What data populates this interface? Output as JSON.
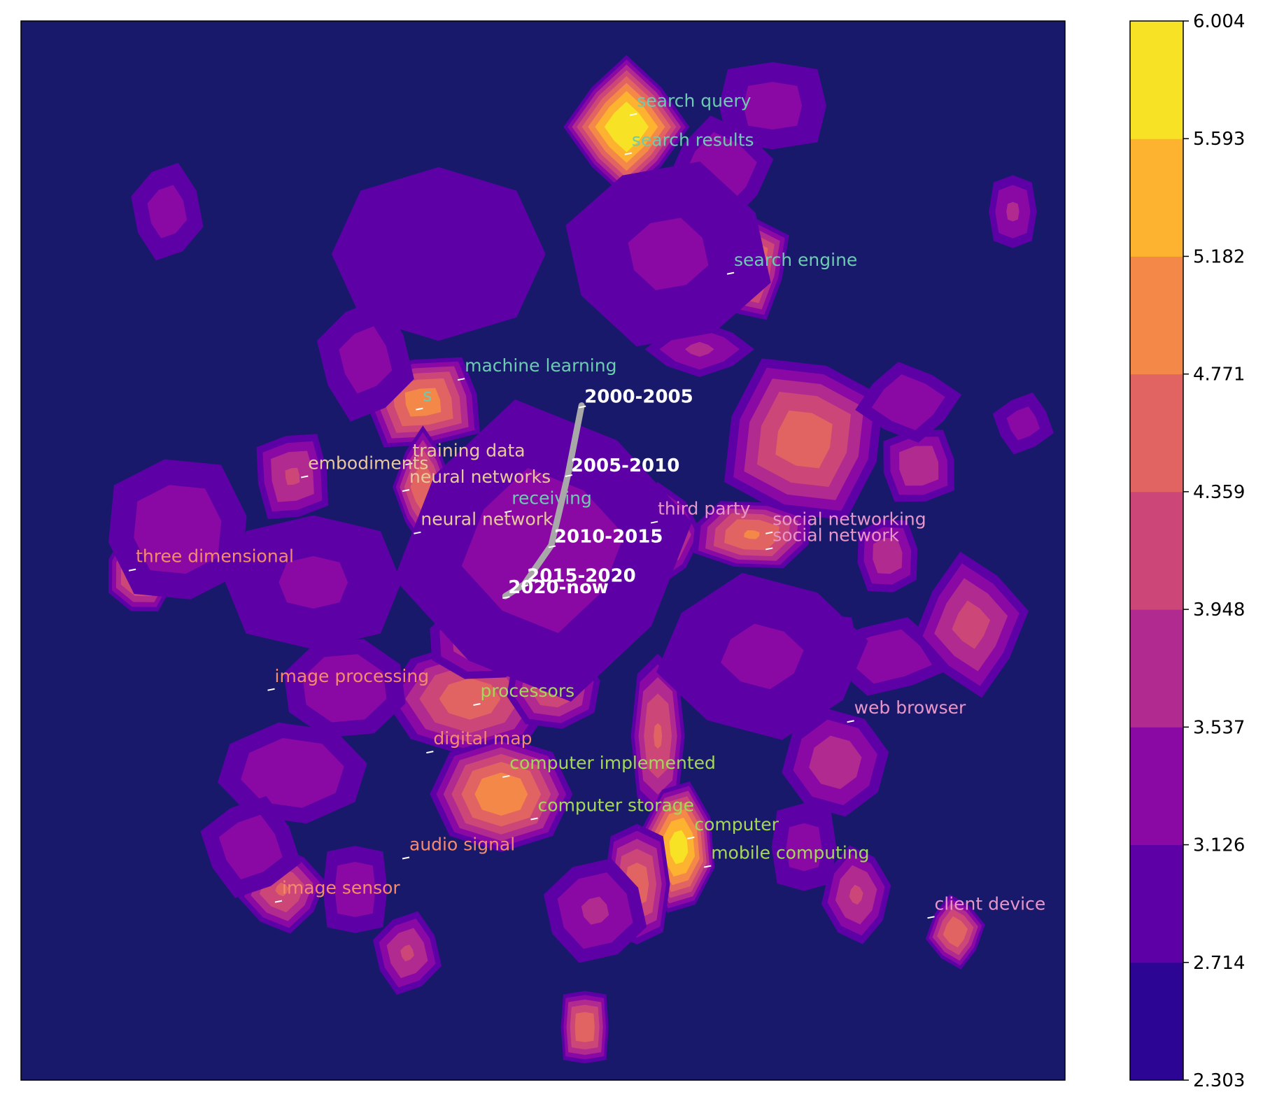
{
  "chart_data": {
    "type": "heatmap",
    "title": "",
    "xlabel": "",
    "ylabel": "",
    "colorbar": {
      "ticks": [
        "2.303",
        "2.714",
        "3.126",
        "3.537",
        "3.948",
        "4.359",
        "4.771",
        "5.182",
        "5.593",
        "6.004"
      ],
      "range": [
        2.303,
        6.004
      ],
      "colors": [
        "#2d0594",
        "#5d01a6",
        "#8a09a5",
        "#b02a90",
        "#cc4778",
        "#e16462",
        "#f48849",
        "#fdb32f",
        "#f7e225"
      ]
    },
    "background_color": "#19196b",
    "peaks": [
      {
        "x": 0.58,
        "y": 0.9,
        "level": 6.0,
        "rx": 0.04,
        "ry": 0.045
      },
      {
        "x": 0.69,
        "y": 0.77,
        "level": 5.1,
        "rx": 0.035,
        "ry": 0.04
      },
      {
        "x": 0.385,
        "y": 0.64,
        "level": 5.0,
        "rx": 0.045,
        "ry": 0.035
      },
      {
        "x": 0.385,
        "y": 0.56,
        "level": 4.7,
        "rx": 0.02,
        "ry": 0.04
      },
      {
        "x": 0.47,
        "y": 0.55,
        "level": 3.9,
        "rx": 0.035,
        "ry": 0.03
      },
      {
        "x": 0.26,
        "y": 0.57,
        "level": 4.0,
        "rx": 0.03,
        "ry": 0.035
      },
      {
        "x": 0.65,
        "y": 0.69,
        "level": 3.6,
        "rx": 0.04,
        "ry": 0.02
      },
      {
        "x": 0.75,
        "y": 0.605,
        "level": 4.6,
        "rx": 0.06,
        "ry": 0.06
      },
      {
        "x": 0.86,
        "y": 0.58,
        "level": 3.9,
        "rx": 0.03,
        "ry": 0.03
      },
      {
        "x": 0.61,
        "y": 0.515,
        "level": 4.6,
        "rx": 0.03,
        "ry": 0.035
      },
      {
        "x": 0.7,
        "y": 0.515,
        "level": 4.8,
        "rx": 0.045,
        "ry": 0.025
      },
      {
        "x": 0.83,
        "y": 0.495,
        "level": 3.8,
        "rx": 0.025,
        "ry": 0.03
      },
      {
        "x": 0.45,
        "y": 0.45,
        "level": 4.5,
        "rx": 0.025,
        "ry": 0.04
      },
      {
        "x": 0.115,
        "y": 0.48,
        "level": 4.7,
        "rx": 0.025,
        "ry": 0.03
      },
      {
        "x": 0.15,
        "y": 0.52,
        "level": 3.4,
        "rx": 0.06,
        "ry": 0.06
      },
      {
        "x": 0.43,
        "y": 0.36,
        "level": 4.6,
        "rx": 0.06,
        "ry": 0.04
      },
      {
        "x": 0.44,
        "y": 0.415,
        "level": 3.9,
        "rx": 0.04,
        "ry": 0.03
      },
      {
        "x": 0.51,
        "y": 0.37,
        "level": 4.3,
        "rx": 0.035,
        "ry": 0.03
      },
      {
        "x": 0.46,
        "y": 0.27,
        "level": 5.1,
        "rx": 0.05,
        "ry": 0.04
      },
      {
        "x": 0.31,
        "y": 0.37,
        "level": 3.5,
        "rx": 0.05,
        "ry": 0.04
      },
      {
        "x": 0.26,
        "y": 0.29,
        "level": 3.5,
        "rx": 0.06,
        "ry": 0.04
      },
      {
        "x": 0.61,
        "y": 0.325,
        "level": 4.4,
        "rx": 0.02,
        "ry": 0.06
      },
      {
        "x": 0.63,
        "y": 0.22,
        "level": 5.8,
        "rx": 0.025,
        "ry": 0.045
      },
      {
        "x": 0.78,
        "y": 0.3,
        "level": 3.8,
        "rx": 0.04,
        "ry": 0.04
      },
      {
        "x": 0.59,
        "y": 0.185,
        "level": 4.6,
        "rx": 0.025,
        "ry": 0.045
      },
      {
        "x": 0.55,
        "y": 0.16,
        "level": 3.6,
        "rx": 0.04,
        "ry": 0.04
      },
      {
        "x": 0.8,
        "y": 0.175,
        "level": 4.0,
        "rx": 0.025,
        "ry": 0.035
      },
      {
        "x": 0.75,
        "y": 0.22,
        "level": 3.3,
        "rx": 0.03,
        "ry": 0.04
      },
      {
        "x": 0.37,
        "y": 0.12,
        "level": 4.0,
        "rx": 0.025,
        "ry": 0.03
      },
      {
        "x": 0.25,
        "y": 0.18,
        "level": 4.4,
        "rx": 0.03,
        "ry": 0.03
      },
      {
        "x": 0.32,
        "y": 0.18,
        "level": 3.4,
        "rx": 0.03,
        "ry": 0.04
      },
      {
        "x": 0.22,
        "y": 0.22,
        "level": 3.4,
        "rx": 0.04,
        "ry": 0.04
      },
      {
        "x": 0.895,
        "y": 0.14,
        "level": 4.7,
        "rx": 0.02,
        "ry": 0.025
      },
      {
        "x": 0.54,
        "y": 0.05,
        "level": 4.7,
        "rx": 0.02,
        "ry": 0.03
      },
      {
        "x": 0.83,
        "y": 0.4,
        "level": 3.5,
        "rx": 0.05,
        "ry": 0.03
      },
      {
        "x": 0.91,
        "y": 0.43,
        "level": 4.1,
        "rx": 0.04,
        "ry": 0.05
      },
      {
        "x": 0.76,
        "y": 0.41,
        "level": 3.4,
        "rx": 0.04,
        "ry": 0.03
      },
      {
        "x": 0.96,
        "y": 0.62,
        "level": 3.3,
        "rx": 0.025,
        "ry": 0.025
      },
      {
        "x": 0.85,
        "y": 0.64,
        "level": 3.5,
        "rx": 0.04,
        "ry": 0.03
      },
      {
        "x": 0.72,
        "y": 0.92,
        "level": 3.3,
        "rx": 0.05,
        "ry": 0.04
      },
      {
        "x": 0.33,
        "y": 0.68,
        "level": 3.3,
        "rx": 0.04,
        "ry": 0.05
      },
      {
        "x": 0.67,
        "y": 0.86,
        "level": 3.5,
        "rx": 0.04,
        "ry": 0.04
      },
      {
        "x": 0.95,
        "y": 0.82,
        "level": 3.6,
        "rx": 0.02,
        "ry": 0.03
      },
      {
        "x": 0.14,
        "y": 0.82,
        "level": 3.3,
        "rx": 0.03,
        "ry": 0.04
      },
      {
        "x": 0.5,
        "y": 0.5,
        "level": 3.3,
        "rx": 0.12,
        "ry": 0.12
      },
      {
        "x": 0.28,
        "y": 0.47,
        "level": 3.2,
        "rx": 0.08,
        "ry": 0.06
      },
      {
        "x": 0.62,
        "y": 0.78,
        "level": 3.2,
        "rx": 0.09,
        "ry": 0.08
      },
      {
        "x": 0.71,
        "y": 0.4,
        "level": 3.2,
        "rx": 0.09,
        "ry": 0.07
      },
      {
        "x": 0.4,
        "y": 0.78,
        "level": 3.1,
        "rx": 0.1,
        "ry": 0.08
      }
    ],
    "terms": [
      {
        "label": "search query",
        "x": 0.59,
        "y": 0.915,
        "color": "#6ccbb0"
      },
      {
        "label": "search results",
        "x": 0.585,
        "y": 0.878,
        "color": "#6ccbb0"
      },
      {
        "label": "search engine",
        "x": 0.683,
        "y": 0.765,
        "color": "#6ccbb0"
      },
      {
        "label": "machine learning",
        "x": 0.425,
        "y": 0.665,
        "color": "#6ccbb0"
      },
      {
        "label": "s",
        "x": 0.385,
        "y": 0.637,
        "color": "#6ccbb0"
      },
      {
        "label": "receiving",
        "x": 0.47,
        "y": 0.54,
        "color": "#6ccbb0"
      },
      {
        "label": "training data",
        "x": 0.375,
        "y": 0.585,
        "color": "#e8c99a"
      },
      {
        "label": "neural networks",
        "x": 0.372,
        "y": 0.56,
        "color": "#e8c99a"
      },
      {
        "label": "neural network",
        "x": 0.383,
        "y": 0.52,
        "color": "#e8c99a"
      },
      {
        "label": "embodiments",
        "x": 0.275,
        "y": 0.573,
        "color": "#e8c99a"
      },
      {
        "label": "third party",
        "x": 0.61,
        "y": 0.53,
        "color": "#e896c8"
      },
      {
        "label": "social networking",
        "x": 0.72,
        "y": 0.52,
        "color": "#e896c8"
      },
      {
        "label": "social network",
        "x": 0.72,
        "y": 0.505,
        "color": "#e896c8"
      },
      {
        "label": "web browser",
        "x": 0.798,
        "y": 0.342,
        "color": "#e896c8"
      },
      {
        "label": "client device",
        "x": 0.875,
        "y": 0.157,
        "color": "#e896c8"
      },
      {
        "label": "three dimensional",
        "x": 0.11,
        "y": 0.485,
        "color": "#f58b6c"
      },
      {
        "label": "image processing",
        "x": 0.243,
        "y": 0.372,
        "color": "#f58b6c"
      },
      {
        "label": "digital map",
        "x": 0.395,
        "y": 0.313,
        "color": "#f58b6c"
      },
      {
        "label": "audio signal",
        "x": 0.372,
        "y": 0.213,
        "color": "#f58b6c"
      },
      {
        "label": "image sensor",
        "x": 0.25,
        "y": 0.172,
        "color": "#f58b6c"
      },
      {
        "label": "processors",
        "x": 0.44,
        "y": 0.358,
        "color": "#a5d85a"
      },
      {
        "label": "computer implemented",
        "x": 0.468,
        "y": 0.29,
        "color": "#a5d85a"
      },
      {
        "label": "computer storage",
        "x": 0.495,
        "y": 0.25,
        "color": "#a5d85a"
      },
      {
        "label": "computer",
        "x": 0.645,
        "y": 0.232,
        "color": "#a5d85a"
      },
      {
        "label": "mobile computing",
        "x": 0.661,
        "y": 0.205,
        "color": "#a5d85a"
      }
    ],
    "trajectory": [
      {
        "label": "2000-2005",
        "x": 0.537,
        "y": 0.637
      },
      {
        "label": "2005-2010",
        "x": 0.524,
        "y": 0.572
      },
      {
        "label": "2010-2015",
        "x": 0.508,
        "y": 0.505
      },
      {
        "label": "2015-2020",
        "x": 0.482,
        "y": 0.468
      },
      {
        "label": "2020-now",
        "x": 0.464,
        "y": 0.457
      }
    ],
    "trajectory_color": "#a8a8a8",
    "xlim": [
      0,
      1
    ],
    "ylim": [
      0,
      1
    ],
    "grid": false,
    "legend": "none"
  }
}
